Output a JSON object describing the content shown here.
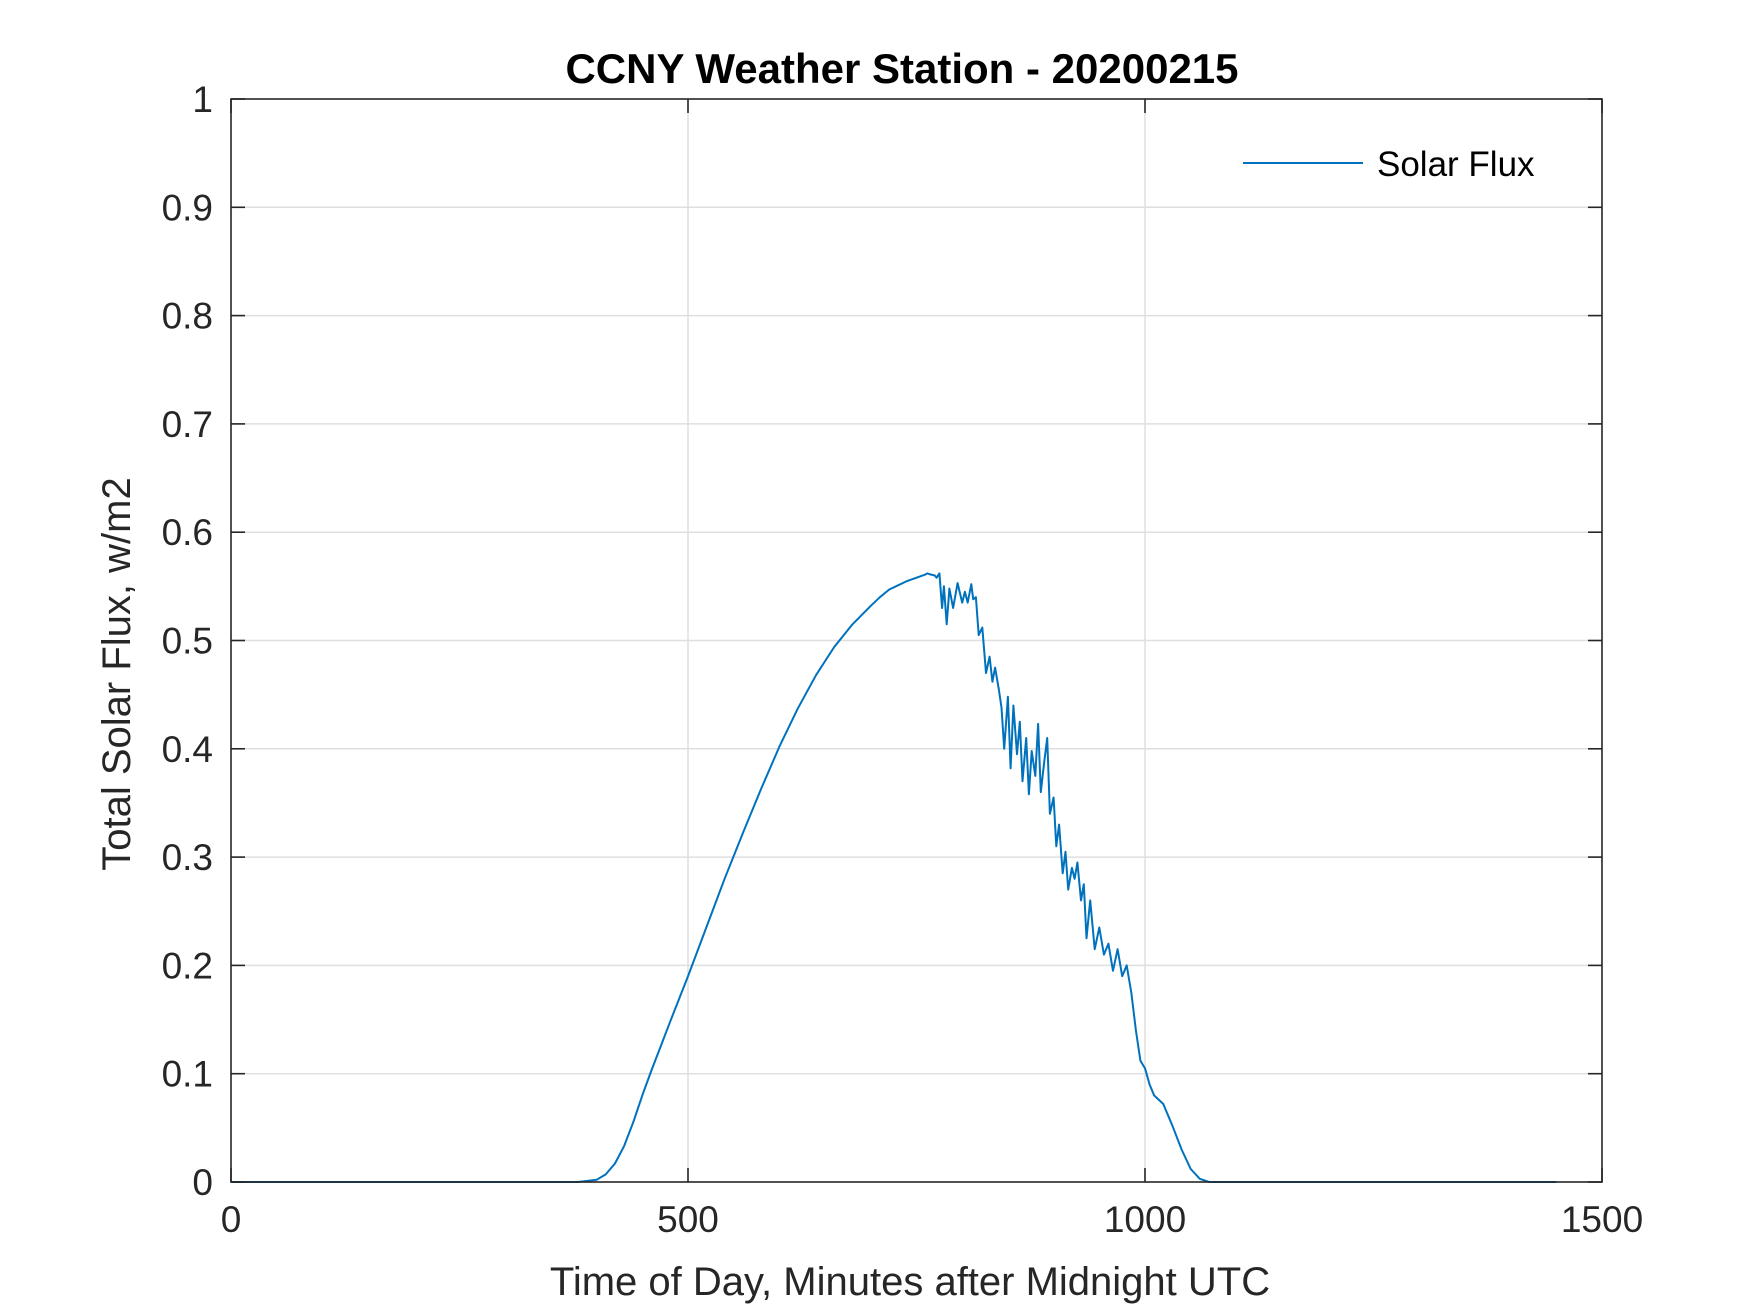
{
  "chart_data": {
    "type": "line",
    "title": "CCNY Weather Station - 20200215",
    "xlabel": "Time of Day, Minutes after Midnight UTC",
    "ylabel": "Total Solar Flux, w/m2",
    "xlim": [
      0,
      1500
    ],
    "ylim": [
      0,
      1
    ],
    "xticks": [
      0,
      500,
      1000,
      1500
    ],
    "xtick_labels": [
      "0",
      "500",
      "1000",
      "1500"
    ],
    "yticks": [
      0,
      0.1,
      0.2,
      0.3,
      0.4,
      0.5,
      0.6,
      0.7,
      0.8,
      0.9,
      1
    ],
    "ytick_labels": [
      "0",
      "0.1",
      "0.2",
      "0.3",
      "0.4",
      "0.5",
      "0.6",
      "0.7",
      "0.8",
      "0.9",
      "1"
    ],
    "grid": true,
    "legend": {
      "position": "top-right",
      "entries": [
        "Solar Flux"
      ]
    },
    "colors": {
      "series": "#0072bd",
      "grid": "#dfdfdf",
      "axis": "#262626"
    },
    "series": [
      {
        "name": "Solar Flux",
        "x": [
          0,
          100,
          200,
          300,
          380,
          400,
          410,
          420,
          430,
          440,
          450,
          460,
          470,
          480,
          500,
          520,
          540,
          560,
          580,
          600,
          620,
          640,
          660,
          680,
          700,
          710,
          720,
          740,
          760,
          762,
          765,
          770,
          772,
          775,
          778,
          780,
          783,
          786,
          790,
          795,
          800,
          803,
          806,
          810,
          812,
          815,
          818,
          822,
          826,
          830,
          833,
          836,
          840,
          843,
          846,
          850,
          853,
          856,
          860,
          863,
          866,
          870,
          873,
          876,
          880,
          883,
          886,
          890,
          893,
          896,
          900,
          903,
          906,
          910,
          913,
          916,
          920,
          923,
          926,
          930,
          933,
          936,
          940,
          945,
          950,
          955,
          960,
          965,
          970,
          975,
          980,
          985,
          990,
          995,
          1000,
          1005,
          1010,
          1020,
          1030,
          1040,
          1050,
          1060,
          1070,
          1100,
          1200,
          1300,
          1400,
          1450
        ],
        "values": [
          0,
          0,
          0,
          0,
          0,
          0.002,
          0.007,
          0.017,
          0.033,
          0.055,
          0.08,
          0.103,
          0.125,
          0.147,
          0.19,
          0.235,
          0.28,
          0.322,
          0.363,
          0.402,
          0.437,
          0.468,
          0.494,
          0.515,
          0.532,
          0.54,
          0.547,
          0.555,
          0.561,
          0.562,
          0.561,
          0.56,
          0.558,
          0.562,
          0.53,
          0.55,
          0.515,
          0.548,
          0.53,
          0.553,
          0.535,
          0.545,
          0.535,
          0.552,
          0.538,
          0.54,
          0.505,
          0.512,
          0.47,
          0.485,
          0.462,
          0.475,
          0.455,
          0.438,
          0.4,
          0.448,
          0.382,
          0.44,
          0.395,
          0.425,
          0.37,
          0.41,
          0.358,
          0.398,
          0.375,
          0.423,
          0.36,
          0.39,
          0.41,
          0.34,
          0.355,
          0.31,
          0.33,
          0.285,
          0.305,
          0.27,
          0.29,
          0.28,
          0.295,
          0.26,
          0.275,
          0.225,
          0.26,
          0.215,
          0.235,
          0.21,
          0.22,
          0.195,
          0.215,
          0.19,
          0.2,
          0.175,
          0.14,
          0.112,
          0.105,
          0.09,
          0.08,
          0.072,
          0.052,
          0.03,
          0.012,
          0.003,
          0,
          0,
          0,
          0,
          0,
          0
        ]
      }
    ]
  }
}
